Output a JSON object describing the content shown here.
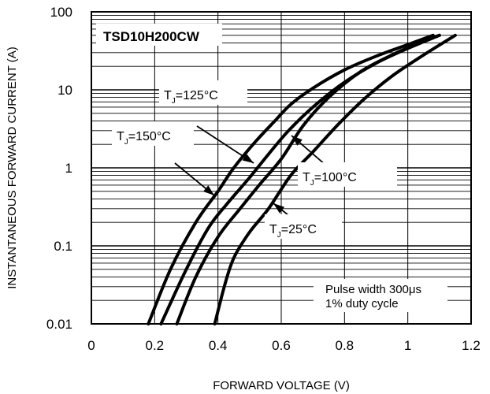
{
  "chart_data": {
    "type": "line",
    "title": "TSD10H200CW",
    "xlabel": "FORWARD VOLTAGE (V)",
    "ylabel": "INSTANTANEOUS FORWARD CURRENT (A)",
    "xlim": [
      0,
      1.2
    ],
    "ylim": [
      0.01,
      100
    ],
    "yscale": "log",
    "grid": true,
    "x_ticks": [
      "0",
      "0.2",
      "0.4",
      "0.6",
      "0.8",
      "1",
      "1.2"
    ],
    "y_ticks": [
      "0.01",
      "0.1",
      "1",
      "10",
      "100"
    ],
    "annotation": [
      "Pulse width 300μs",
      "1% duty cycle"
    ],
    "series": [
      {
        "name": "TJ=150°C",
        "label_main": "T",
        "label_sub": "J",
        "label_rest": "=150°C",
        "x": [
          0.18,
          0.25,
          0.33,
          0.4,
          0.45,
          0.52,
          0.58,
          0.63,
          0.7,
          0.8,
          0.9,
          1.0,
          1.08
        ],
        "y": [
          0.01,
          0.05,
          0.2,
          0.5,
          1.0,
          2.2,
          4.0,
          6.5,
          10.5,
          18.0,
          27.0,
          38.0,
          50.0
        ]
      },
      {
        "name": "TJ=125°C",
        "label_main": "T",
        "label_sub": "J",
        "label_rest": "=125°C",
        "x": [
          0.22,
          0.3,
          0.37,
          0.43,
          0.5,
          0.56,
          0.62,
          0.7,
          0.8,
          0.9,
          1.0,
          1.1
        ],
        "y": [
          0.01,
          0.05,
          0.17,
          0.35,
          0.75,
          1.5,
          2.9,
          6.0,
          12.5,
          22.0,
          34.0,
          50.0
        ]
      },
      {
        "name": "TJ=100°C",
        "label_main": "T",
        "label_sub": "J",
        "label_rest": "=100°C",
        "x": [
          0.27,
          0.33,
          0.4,
          0.47,
          0.53,
          0.6,
          0.67,
          0.75,
          0.85,
          0.95,
          1.03,
          1.1
        ],
        "y": [
          0.01,
          0.04,
          0.13,
          0.3,
          0.6,
          1.3,
          3.5,
          8.0,
          17.0,
          28.0,
          39.0,
          50.0
        ]
      },
      {
        "name": "TJ=25°C",
        "label_main": "T",
        "label_sub": "J",
        "label_rest": "=25°C",
        "x": [
          0.39,
          0.42,
          0.45,
          0.5,
          0.56,
          0.63,
          0.7,
          0.78,
          0.86,
          0.95,
          1.05,
          1.15
        ],
        "y": [
          0.01,
          0.03,
          0.07,
          0.15,
          0.3,
          0.8,
          1.6,
          3.6,
          7.5,
          15.0,
          28.0,
          50.0
        ]
      }
    ]
  }
}
